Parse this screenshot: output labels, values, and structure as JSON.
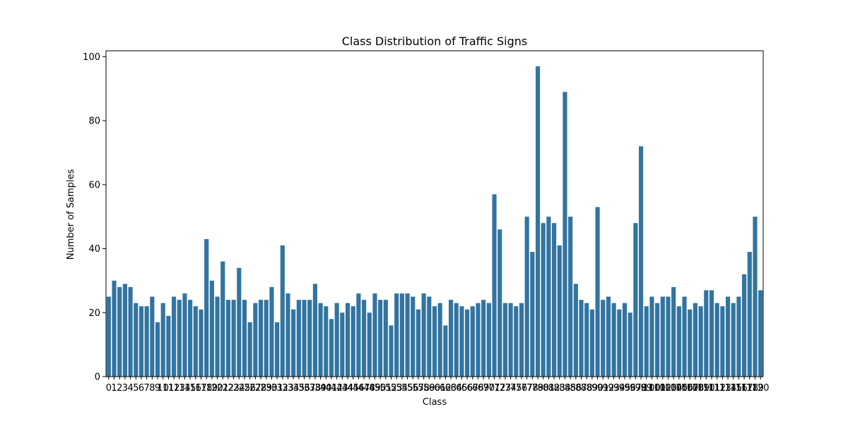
{
  "chart_data": {
    "type": "bar",
    "title": "Class Distribution of Traffic Signs",
    "xlabel": "Class",
    "ylabel": "Number of Samples",
    "ylim": [
      0,
      101.85
    ],
    "yticks": [
      0,
      20,
      40,
      60,
      80,
      100
    ],
    "bar_color": "#3274a1",
    "grid": false,
    "categories": [
      "0",
      "1",
      "2",
      "3",
      "4",
      "5",
      "6",
      "7",
      "8",
      "9",
      "10",
      "11",
      "12",
      "13",
      "14",
      "15",
      "16",
      "17",
      "18",
      "19",
      "20",
      "21",
      "22",
      "23",
      "24",
      "25",
      "26",
      "27",
      "28",
      "29",
      "30",
      "31",
      "32",
      "33",
      "34",
      "35",
      "36",
      "37",
      "38",
      "39",
      "40",
      "41",
      "42",
      "43",
      "44",
      "45",
      "46",
      "47",
      "48",
      "49",
      "50",
      "51",
      "52",
      "53",
      "54",
      "55",
      "56",
      "57",
      "58",
      "59",
      "60",
      "61",
      "62",
      "63",
      "64",
      "65",
      "66",
      "67",
      "68",
      "69",
      "70",
      "71",
      "72",
      "73",
      "74",
      "75",
      "76",
      "77",
      "78",
      "79",
      "80",
      "81",
      "82",
      "83",
      "84",
      "85",
      "86",
      "87",
      "88",
      "89",
      "90",
      "91",
      "92",
      "93",
      "94",
      "95",
      "96",
      "97",
      "98",
      "99",
      "100",
      "101",
      "102",
      "103",
      "104",
      "105",
      "106",
      "107",
      "108",
      "109",
      "110",
      "111",
      "112",
      "113",
      "114",
      "115",
      "116",
      "117",
      "118",
      "119",
      "120"
    ],
    "values": [
      25,
      30,
      28,
      29,
      28,
      23,
      22,
      22,
      25,
      17,
      23,
      19,
      25,
      24,
      26,
      24,
      22,
      21,
      43,
      30,
      25,
      36,
      24,
      24,
      34,
      24,
      17,
      23,
      24,
      24,
      28,
      17,
      41,
      26,
      21,
      24,
      24,
      24,
      29,
      23,
      22,
      18,
      23,
      20,
      23,
      22,
      26,
      24,
      20,
      26,
      24,
      24,
      16,
      26,
      26,
      26,
      25,
      21,
      26,
      25,
      22,
      23,
      16,
      24,
      23,
      22,
      21,
      22,
      23,
      24,
      23,
      57,
      46,
      23,
      23,
      22,
      23,
      50,
      39,
      97,
      48,
      50,
      48,
      41,
      89,
      50,
      29,
      24,
      23,
      21,
      53,
      24,
      25,
      23,
      21,
      23,
      20,
      48,
      72,
      22,
      25,
      23,
      25,
      25,
      28,
      22,
      25,
      21,
      23,
      22,
      27,
      27,
      23,
      22,
      25,
      23,
      25,
      32,
      39,
      50,
      27
    ]
  }
}
